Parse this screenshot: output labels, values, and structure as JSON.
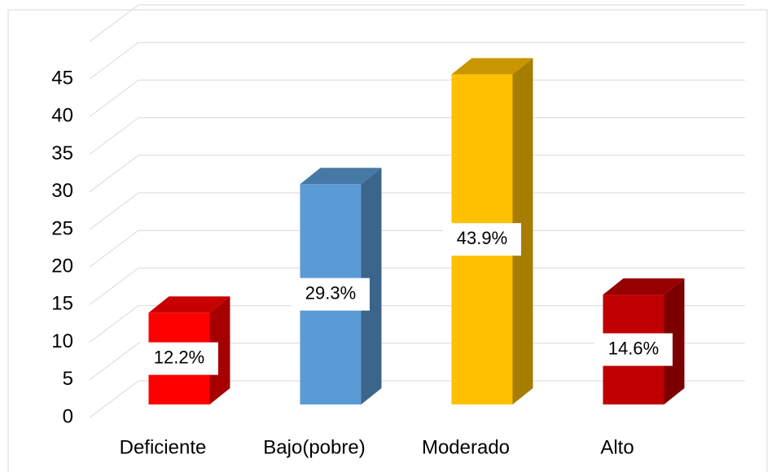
{
  "chart_data": {
    "type": "bar3d",
    "categories": [
      "Deficiente",
      "Bajo(pobre)",
      "Moderado",
      "Alto"
    ],
    "values": [
      12.2,
      29.3,
      43.9,
      14.6
    ],
    "value_labels": [
      "12.2%",
      "29.3%",
      "43.9%",
      "14.6%"
    ],
    "colors": [
      "#ff0000",
      "#5b9bd5",
      "#ffc000",
      "#c00000"
    ],
    "ylim": [
      0,
      50
    ],
    "yticks": [
      0,
      5,
      10,
      15,
      20,
      25,
      30,
      35,
      40,
      45
    ],
    "grid": true
  }
}
